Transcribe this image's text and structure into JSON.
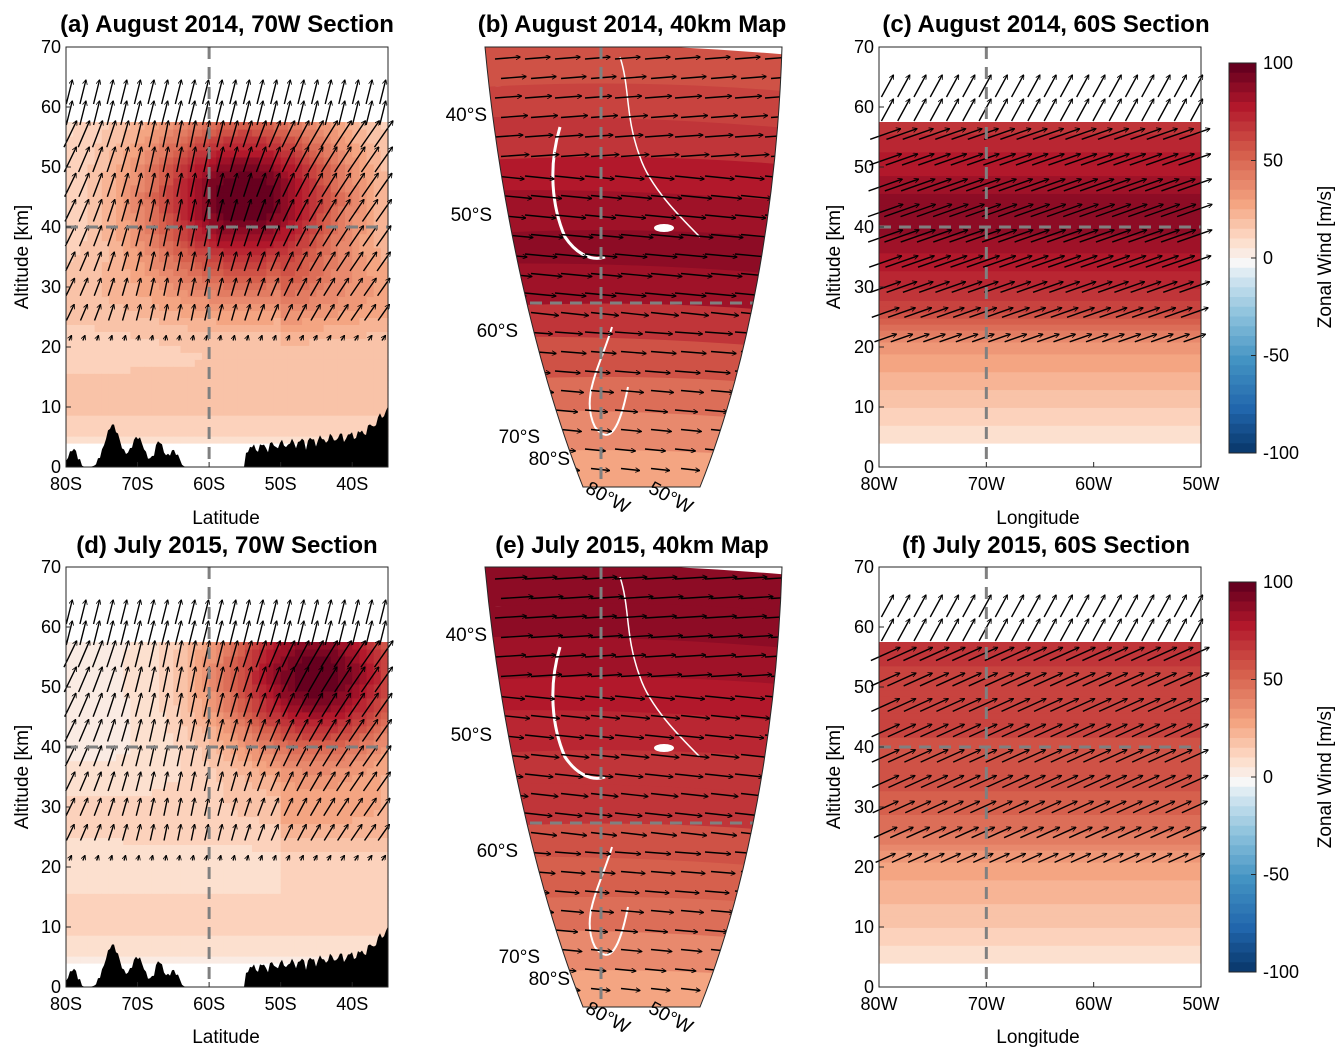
{
  "colorbar": {
    "label": "Zonal Wind [m/s]",
    "ticks": [
      100,
      50,
      0,
      -50,
      -100
    ],
    "range": [
      -100,
      100
    ],
    "colormap": "red-blue diverging",
    "colors": {
      "max": "#67001f",
      "mid_red": "#d6604d",
      "zero": "#f7f7f7",
      "mid_blue": "#4393c3",
      "min": "#053061"
    }
  },
  "chart_data": [
    {
      "id": "a",
      "type": "heatmap",
      "subtype": "contour-with-quiver",
      "title": "(a) August 2014, 70W Section",
      "xlabel": "Latitude",
      "ylabel": "Altitude [km]",
      "xticks": [
        "80S",
        "70S",
        "60S",
        "50S",
        "40S"
      ],
      "xtick_values": [
        -80,
        -70,
        -60,
        -50,
        -40
      ],
      "yticks": [
        0,
        10,
        20,
        30,
        40,
        50,
        60,
        70
      ],
      "xlim": [
        -80,
        -35
      ],
      "ylim": [
        0,
        70
      ],
      "data_top_km": 57.5,
      "data_bottom_km": 4,
      "reference_lines": {
        "x": -60,
        "y_km": 40
      },
      "jet_core": {
        "lat": -55,
        "alt_km": 45,
        "peak": 95
      },
      "background": 10,
      "upper_low_lat": 30,
      "upper_high_lat": 78,
      "terrain": true
    },
    {
      "id": "b",
      "type": "map",
      "subtype": "contour-with-quiver",
      "title": "(b) August 2014, 40km Map",
      "lat_labels": [
        "40°S",
        "50°S",
        "60°S",
        "70°S",
        "80°S"
      ],
      "lon_labels": [
        "80°W",
        "50°W"
      ],
      "reference_lines": {
        "lat": -60,
        "lon": -70
      },
      "band_speeds": [
        60,
        66,
        72,
        78,
        85,
        92,
        86,
        70,
        60,
        48,
        38,
        30
      ]
    },
    {
      "id": "c",
      "type": "heatmap",
      "subtype": "contour-with-quiver",
      "title": "(c) August 2014, 60S Section",
      "xlabel": "Longitude",
      "ylabel": "Altitude [km]",
      "xticks": [
        "80W",
        "70W",
        "60W",
        "50W"
      ],
      "xtick_values": [
        -80,
        -70,
        -60,
        -50
      ],
      "yticks": [
        0,
        10,
        20,
        30,
        40,
        50,
        60,
        70
      ],
      "xlim": [
        -80,
        -50
      ],
      "ylim": [
        0,
        70
      ],
      "data_top_km": 57.5,
      "data_bottom_km": 4,
      "reference_lines": {
        "x": -70,
        "y_km": 40
      },
      "profile": [
        [
          4,
          8
        ],
        [
          10,
          18
        ],
        [
          20,
          35
        ],
        [
          25,
          60
        ],
        [
          30,
          72
        ],
        [
          35,
          82
        ],
        [
          40,
          90
        ],
        [
          45,
          88
        ],
        [
          50,
          80
        ],
        [
          55,
          74
        ],
        [
          57.5,
          70
        ]
      ]
    },
    {
      "id": "d",
      "type": "heatmap",
      "subtype": "contour-with-quiver",
      "title": "(d) July 2015, 70W Section",
      "xlabel": "Latitude",
      "ylabel": "Altitude [km]",
      "xticks": [
        "80S",
        "70S",
        "60S",
        "50S",
        "40S"
      ],
      "xtick_values": [
        -80,
        -70,
        -60,
        -50,
        -40
      ],
      "yticks": [
        0,
        10,
        20,
        30,
        40,
        50,
        60,
        70
      ],
      "xlim": [
        -80,
        -35
      ],
      "ylim": [
        0,
        70
      ],
      "data_top_km": 57.5,
      "data_bottom_km": 4,
      "reference_lines": {
        "x": -60,
        "y_km": 40
      },
      "jet_core": {
        "lat": -45,
        "alt_km": 52,
        "peak": 98
      },
      "background": 5,
      "upper_low_lat": 45,
      "upper_high_lat": 75,
      "terrain": true
    },
    {
      "id": "e",
      "type": "map",
      "subtype": "contour-with-quiver",
      "title": "(e) July 2015, 40km Map",
      "lat_labels": [
        "40°S",
        "50°S",
        "60°S",
        "70°S",
        "80°S"
      ],
      "lon_labels": [
        "80°W",
        "50°W"
      ],
      "reference_lines": {
        "lat": -60,
        "lon": -70
      },
      "band_speeds": [
        90,
        88,
        85,
        80,
        76,
        72,
        68,
        62,
        55,
        48,
        40,
        32
      ]
    },
    {
      "id": "f",
      "type": "heatmap",
      "subtype": "contour-with-quiver",
      "title": "(f) July 2015, 60S Section",
      "xlabel": "Longitude",
      "ylabel": "Altitude [km]",
      "xticks": [
        "80W",
        "70W",
        "60W",
        "50W"
      ],
      "xtick_values": [
        -80,
        -70,
        -60,
        -50
      ],
      "yticks": [
        0,
        10,
        20,
        30,
        40,
        50,
        60,
        70
      ],
      "xlim": [
        -80,
        -50
      ],
      "ylim": [
        0,
        70
      ],
      "data_top_km": 57.5,
      "data_bottom_km": 4,
      "reference_lines": {
        "x": -70,
        "y_km": 40
      },
      "profile": [
        [
          4,
          8
        ],
        [
          10,
          18
        ],
        [
          20,
          30
        ],
        [
          25,
          45
        ],
        [
          30,
          55
        ],
        [
          35,
          60
        ],
        [
          40,
          62
        ],
        [
          45,
          64
        ],
        [
          50,
          66
        ],
        [
          55,
          68
        ],
        [
          57.5,
          70
        ]
      ]
    }
  ]
}
